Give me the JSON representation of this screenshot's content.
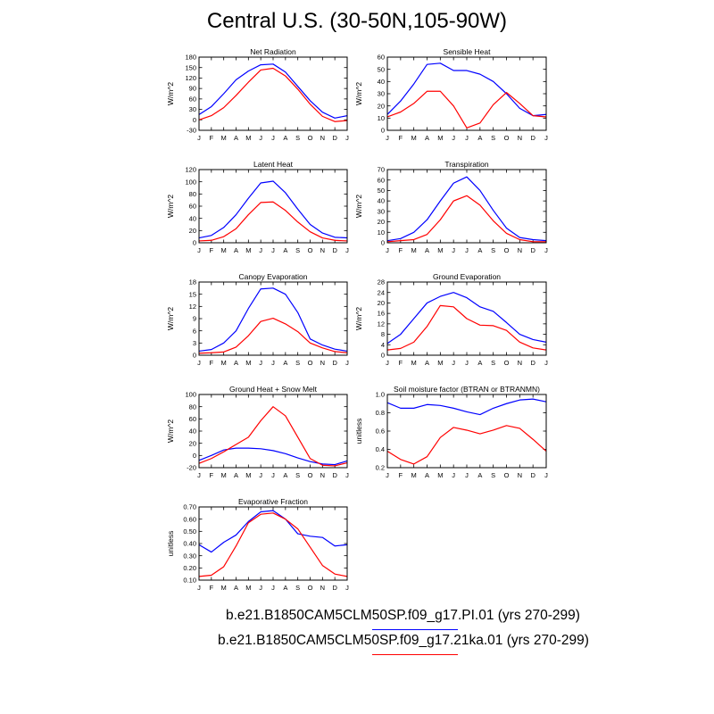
{
  "title": "Central U.S. (30-50N,105-90W)",
  "legend": [
    {
      "label": "b.e21.B1850CAM5CLM50SP.f09_g17.PI.01 (yrs 270-299)",
      "color": "#0000ff"
    },
    {
      "label": "b.e21.B1850CAM5CLM50SP.f09_g17.21ka.01 (yrs 270-299)",
      "color": "#ff0000"
    }
  ],
  "chart_data": [
    {
      "type": "line",
      "title": "Net Radiation",
      "ylabel": "W/m^2",
      "categories": [
        "J",
        "F",
        "M",
        "A",
        "M",
        "J",
        "J",
        "A",
        "S",
        "O",
        "N",
        "D",
        "J"
      ],
      "ylim": [
        -30,
        180
      ],
      "yticks": [
        "-30",
        "0",
        "30",
        "60",
        "90",
        "120",
        "150",
        "180"
      ],
      "series": [
        {
          "color": "#0000ff",
          "values": [
            15,
            38,
            75,
            115,
            140,
            158,
            160,
            137,
            96,
            55,
            22,
            5,
            12
          ]
        },
        {
          "color": "#ff0000",
          "values": [
            0,
            12,
            35,
            70,
            108,
            143,
            148,
            126,
            88,
            45,
            10,
            -5,
            -2
          ]
        }
      ]
    },
    {
      "type": "line",
      "title": "Sensible Heat",
      "ylabel": "W/m^2",
      "categories": [
        "J",
        "F",
        "M",
        "A",
        "M",
        "J",
        "J",
        "A",
        "S",
        "O",
        "N",
        "D",
        "J"
      ],
      "ylim": [
        0,
        60
      ],
      "yticks": [
        "0",
        "10",
        "20",
        "30",
        "40",
        "50",
        "60"
      ],
      "series": [
        {
          "color": "#0000ff",
          "values": [
            13,
            24,
            38,
            54,
            55,
            49,
            49,
            46,
            40,
            30,
            18,
            12,
            13
          ]
        },
        {
          "color": "#ff0000",
          "values": [
            11,
            15,
            22,
            32,
            32,
            20,
            2,
            6,
            21,
            31,
            22,
            12,
            11
          ]
        }
      ]
    },
    {
      "type": "line",
      "title": "Latent Heat",
      "ylabel": "W/m^2",
      "categories": [
        "J",
        "F",
        "M",
        "A",
        "M",
        "J",
        "J",
        "A",
        "S",
        "O",
        "N",
        "D",
        "J"
      ],
      "ylim": [
        0,
        120
      ],
      "yticks": [
        "0",
        "20",
        "40",
        "60",
        "80",
        "100",
        "120"
      ],
      "series": [
        {
          "color": "#0000ff",
          "values": [
            8,
            12,
            25,
            46,
            73,
            98,
            101,
            82,
            55,
            30,
            16,
            9,
            8
          ]
        },
        {
          "color": "#ff0000",
          "values": [
            3,
            4,
            10,
            23,
            46,
            66,
            67,
            53,
            34,
            18,
            8,
            4,
            3
          ]
        }
      ]
    },
    {
      "type": "line",
      "title": "Transpiration",
      "ylabel": "W/m^2",
      "categories": [
        "J",
        "F",
        "M",
        "A",
        "M",
        "J",
        "J",
        "A",
        "S",
        "O",
        "N",
        "D",
        "J"
      ],
      "ylim": [
        0,
        70
      ],
      "yticks": [
        "0",
        "10",
        "20",
        "30",
        "40",
        "50",
        "60",
        "70"
      ],
      "series": [
        {
          "color": "#0000ff",
          "values": [
            2,
            4,
            10,
            22,
            40,
            57,
            63,
            50,
            31,
            14,
            5,
            3,
            2
          ]
        },
        {
          "color": "#ff0000",
          "values": [
            1,
            2,
            3,
            8,
            22,
            40,
            45,
            36,
            21,
            9,
            3,
            1,
            1
          ]
        }
      ]
    },
    {
      "type": "line",
      "title": "Canopy Evaporation",
      "ylabel": "W/m^2",
      "categories": [
        "J",
        "F",
        "M",
        "A",
        "M",
        "J",
        "J",
        "A",
        "S",
        "O",
        "N",
        "D",
        "J"
      ],
      "ylim": [
        0,
        18
      ],
      "yticks": [
        "0",
        "3",
        "6",
        "9",
        "12",
        "15",
        "18"
      ],
      "series": [
        {
          "color": "#0000ff",
          "values": [
            1,
            1.4,
            3,
            6,
            11.5,
            16.3,
            16.5,
            15,
            10.5,
            4,
            2.5,
            1.5,
            1
          ]
        },
        {
          "color": "#ff0000",
          "values": [
            0.5,
            0.6,
            0.8,
            2,
            4.8,
            8.3,
            9.1,
            7.7,
            5.8,
            3,
            1.8,
            0.9,
            0.6
          ]
        }
      ]
    },
    {
      "type": "line",
      "title": "Ground Evaporation",
      "ylabel": "W/m^2",
      "categories": [
        "J",
        "F",
        "M",
        "A",
        "M",
        "J",
        "J",
        "A",
        "S",
        "O",
        "N",
        "D",
        "J"
      ],
      "ylim": [
        0,
        28
      ],
      "yticks": [
        "0",
        "4",
        "8",
        "12",
        "16",
        "20",
        "24",
        "28"
      ],
      "series": [
        {
          "color": "#0000ff",
          "values": [
            4.5,
            8,
            14,
            20,
            22.5,
            24,
            22,
            18.5,
            16.8,
            12.5,
            8,
            6,
            5
          ]
        },
        {
          "color": "#ff0000",
          "values": [
            2,
            2.6,
            5,
            11,
            19,
            18.5,
            14,
            11.5,
            11.3,
            9.5,
            5,
            2.8,
            2
          ]
        }
      ]
    },
    {
      "type": "line",
      "title": "Ground Heat + Snow Melt",
      "ylabel": "W/m^2",
      "categories": [
        "J",
        "F",
        "M",
        "A",
        "M",
        "J",
        "J",
        "A",
        "S",
        "O",
        "N",
        "D",
        "J"
      ],
      "ylim": [
        -20,
        100
      ],
      "yticks": [
        "-20",
        "0",
        "20",
        "40",
        "60",
        "80",
        "100"
      ],
      "series": [
        {
          "color": "#0000ff",
          "values": [
            -8,
            0,
            9,
            12,
            12,
            11,
            8,
            3,
            -4,
            -10,
            -14,
            -15,
            -9
          ]
        },
        {
          "color": "#ff0000",
          "values": [
            -13,
            -5,
            6,
            18,
            30,
            57,
            80,
            65,
            30,
            -5,
            -16,
            -17,
            -12
          ]
        }
      ]
    },
    {
      "type": "line",
      "title": "Soil moisture factor (BTRAN or BTRANMN)",
      "ylabel": "unitless",
      "categories": [
        "J",
        "F",
        "M",
        "A",
        "M",
        "J",
        "J",
        "A",
        "S",
        "O",
        "N",
        "D",
        "J"
      ],
      "ylim": [
        0.2,
        1.0
      ],
      "yticks": [
        "0.2",
        "0.4",
        "0.6",
        "0.8",
        "1.0"
      ],
      "series": [
        {
          "color": "#0000ff",
          "values": [
            0.91,
            0.85,
            0.85,
            0.89,
            0.88,
            0.85,
            0.81,
            0.78,
            0.85,
            0.9,
            0.94,
            0.95,
            0.92
          ]
        },
        {
          "color": "#ff0000",
          "values": [
            0.38,
            0.29,
            0.24,
            0.32,
            0.53,
            0.64,
            0.61,
            0.57,
            0.61,
            0.66,
            0.63,
            0.51,
            0.38
          ]
        }
      ]
    },
    {
      "type": "line",
      "title": "Evaporative Fraction",
      "ylabel": "unitless",
      "categories": [
        "J",
        "F",
        "M",
        "A",
        "M",
        "J",
        "J",
        "A",
        "S",
        "O",
        "N",
        "D",
        "J"
      ],
      "ylim": [
        0.1,
        0.7
      ],
      "yticks": [
        "0.10",
        "0.20",
        "0.30",
        "0.40",
        "0.50",
        "0.60",
        "0.70"
      ],
      "series": [
        {
          "color": "#0000ff",
          "values": [
            0.39,
            0.33,
            0.41,
            0.47,
            0.58,
            0.66,
            0.67,
            0.6,
            0.48,
            0.46,
            0.45,
            0.38,
            0.39
          ]
        },
        {
          "color": "#ff0000",
          "values": [
            0.13,
            0.14,
            0.21,
            0.38,
            0.57,
            0.64,
            0.65,
            0.6,
            0.52,
            0.37,
            0.22,
            0.15,
            0.13
          ]
        }
      ]
    }
  ]
}
